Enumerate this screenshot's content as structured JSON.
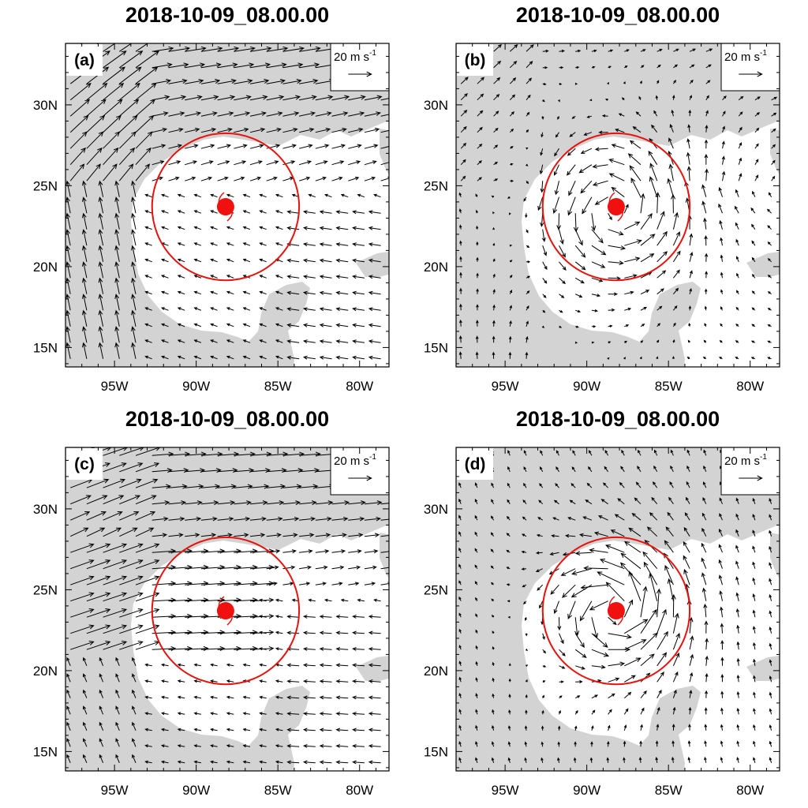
{
  "figure": {
    "panels": [
      {
        "id": "a",
        "title": "2018-10-09_08.00.00",
        "label": "(a)",
        "flow": "environmental"
      },
      {
        "id": "b",
        "title": "2018-10-09_08.00.00",
        "label": "(b)",
        "flow": "cyclonic"
      },
      {
        "id": "c",
        "title": "2018-10-09_08.00.00",
        "label": "(c)",
        "flow": "westerly"
      },
      {
        "id": "d",
        "title": "2018-10-09_08.00.00",
        "label": "(d)",
        "flow": "cyclonic-strong"
      }
    ],
    "reference_vector": {
      "label": "20 m s",
      "superscript": "-1",
      "speed": 20
    },
    "x_ticks": [
      "95W",
      "90W",
      "85W",
      "80W"
    ],
    "y_ticks": [
      "30N",
      "25N",
      "20N",
      "15N"
    ],
    "x_tick_values": [
      -95,
      -90,
      -85,
      -80
    ],
    "y_tick_values": [
      30,
      25,
      20,
      15
    ],
    "lon_range": [
      -98,
      -78.2
    ],
    "lat_range": [
      13.8,
      33.8
    ],
    "storm_center": {
      "lon": -88.2,
      "lat": 23.7
    },
    "circle_radius_deg": 4.5,
    "colors": {
      "land": "#d3d3d3",
      "circle": "#e8120c",
      "storm": "#f01010",
      "vector": "#000000"
    }
  }
}
